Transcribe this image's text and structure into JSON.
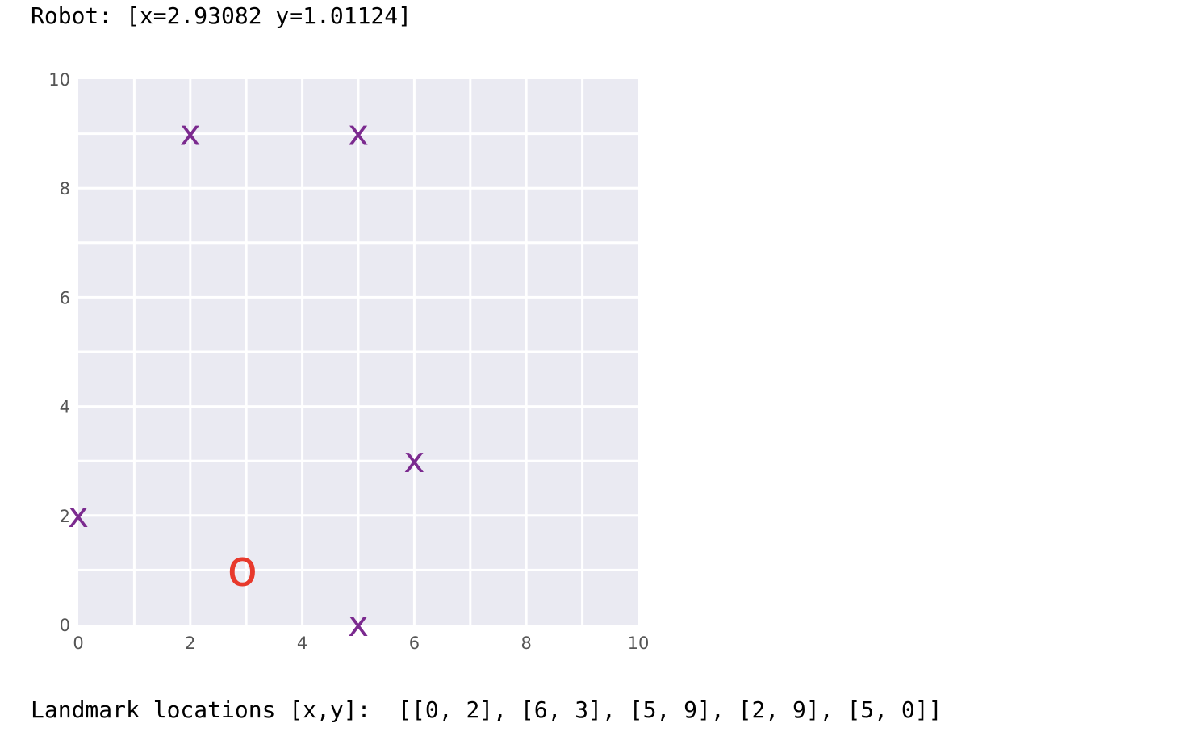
{
  "robot_label": "Robot: [x=2.93082 y=1.01124]",
  "landmarks_label": "Landmark locations [x,y]:  [[0, 2], [6, 3], [5, 9], [2, 9], [5, 0]]",
  "chart_data": {
    "type": "scatter",
    "title": "",
    "xlabel": "",
    "ylabel": "",
    "xlim": [
      0,
      10
    ],
    "ylim": [
      0,
      10
    ],
    "xticks": [
      0,
      2,
      4,
      6,
      8,
      10
    ],
    "yticks": [
      0,
      2,
      4,
      6,
      8,
      10
    ],
    "grid": true,
    "background_color": "#eaeaf2",
    "series": [
      {
        "marker": "x",
        "marker_text": "x",
        "color": "#7b2a8f",
        "points": [
          [
            0,
            2
          ],
          [
            6,
            3
          ],
          [
            5,
            9
          ],
          [
            2,
            9
          ],
          [
            5,
            0
          ]
        ]
      },
      {
        "marker": "o",
        "marker_text": "o",
        "color": "#e8392c",
        "points": [
          [
            2.93082,
            1.01124
          ]
        ]
      }
    ]
  }
}
